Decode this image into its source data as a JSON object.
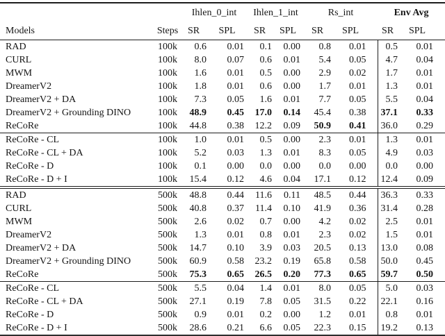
{
  "colors": {
    "background": "#ffffff",
    "text": "#141414",
    "rule": "#1c1c1c"
  },
  "table": {
    "col_groups": [
      {
        "label": "Ihlen_0_int",
        "bold": false
      },
      {
        "label": "Ihlen_1_int",
        "bold": false
      },
      {
        "label": "Rs_int",
        "bold": false
      },
      {
        "label": "Env Avg",
        "bold": true
      }
    ],
    "header": {
      "models": "Models",
      "steps": "Steps",
      "sr": "SR",
      "spl": "SPL"
    },
    "blocks": [
      {
        "rule_after": "single",
        "rows": [
          {
            "model": "RAD",
            "steps": "100k",
            "values": [
              "0.6",
              "0.01",
              "0.1",
              "0.00",
              "0.8",
              "0.01",
              "0.5",
              "0.01"
            ],
            "bold": []
          },
          {
            "model": "CURL",
            "steps": "100k",
            "values": [
              "8.0",
              "0.07",
              "0.6",
              "0.01",
              "5.4",
              "0.05",
              "4.7",
              "0.04"
            ],
            "bold": []
          },
          {
            "model": "MWM",
            "steps": "100k",
            "values": [
              "1.6",
              "0.01",
              "0.5",
              "0.00",
              "2.9",
              "0.02",
              "1.7",
              "0.01"
            ],
            "bold": []
          },
          {
            "model": "DreamerV2",
            "steps": "100k",
            "values": [
              "1.8",
              "0.01",
              "0.6",
              "0.00",
              "1.7",
              "0.01",
              "1.3",
              "0.01"
            ],
            "bold": []
          },
          {
            "model": "DreamerV2 + DA",
            "steps": "100k",
            "values": [
              "7.3",
              "0.05",
              "1.6",
              "0.01",
              "7.7",
              "0.05",
              "5.5",
              "0.04"
            ],
            "bold": []
          },
          {
            "model": "DreamerV2 + Grounding DINO",
            "steps": "100k",
            "values": [
              "48.9",
              "0.45",
              "17.0",
              "0.14",
              "45.4",
              "0.38",
              "37.1",
              "0.33"
            ],
            "bold": [
              0,
              1,
              2,
              3,
              6,
              7
            ]
          },
          {
            "model": "ReCoRe",
            "steps": "100k",
            "values": [
              "44.8",
              "0.38",
              "12.2",
              "0.09",
              "50.9",
              "0.41",
              "36.0",
              "0.29"
            ],
            "bold": [
              4,
              5
            ]
          }
        ]
      },
      {
        "rule_after": "double",
        "rows": [
          {
            "model": "ReCoRe - CL",
            "steps": "100k",
            "values": [
              "1.0",
              "0.01",
              "0.5",
              "0.00",
              "2.3",
              "0.01",
              "1.3",
              "0.01"
            ],
            "bold": []
          },
          {
            "model": "ReCoRe - CL + DA",
            "steps": "100k",
            "values": [
              "5.2",
              "0.03",
              "1.3",
              "0.01",
              "8.3",
              "0.05",
              "4.9",
              "0.03"
            ],
            "bold": []
          },
          {
            "model": "ReCoRe - D",
            "steps": "100k",
            "values": [
              "0.1",
              "0.00",
              "0.0",
              "0.00",
              "0.0",
              "0.00",
              "0.0",
              "0.00"
            ],
            "bold": []
          },
          {
            "model": "ReCoRe - D + I",
            "steps": "100k",
            "values": [
              "15.4",
              "0.12",
              "4.6",
              "0.04",
              "17.1",
              "0.12",
              "12.4",
              "0.09"
            ],
            "bold": []
          }
        ]
      },
      {
        "rule_after": "single",
        "rows": [
          {
            "model": "RAD",
            "steps": "500k",
            "values": [
              "48.8",
              "0.44",
              "11.6",
              "0.11",
              "48.5",
              "0.44",
              "36.3",
              "0.33"
            ],
            "bold": []
          },
          {
            "model": "CURL",
            "steps": "500k",
            "values": [
              "40.8",
              "0.37",
              "11.4",
              "0.10",
              "41.9",
              "0.36",
              "31.4",
              "0.28"
            ],
            "bold": []
          },
          {
            "model": "MWM",
            "steps": "500k",
            "values": [
              "2.6",
              "0.02",
              "0.7",
              "0.00",
              "4.2",
              "0.02",
              "2.5",
              "0.01"
            ],
            "bold": []
          },
          {
            "model": "DreamerV2",
            "steps": "500k",
            "values": [
              "1.3",
              "0.01",
              "0.8",
              "0.01",
              "2.3",
              "0.02",
              "1.5",
              "0.01"
            ],
            "bold": []
          },
          {
            "model": "DreamerV2 + DA",
            "steps": "500k",
            "values": [
              "14.7",
              "0.10",
              "3.9",
              "0.03",
              "20.5",
              "0.13",
              "13.0",
              "0.08"
            ],
            "bold": []
          },
          {
            "model": "DreamerV2 + Grounding DINO",
            "steps": "500k",
            "values": [
              "60.9",
              "0.58",
              "23.2",
              "0.19",
              "65.8",
              "0.58",
              "50.0",
              "0.45"
            ],
            "bold": []
          },
          {
            "model": "ReCoRe",
            "steps": "500k",
            "values": [
              "75.3",
              "0.65",
              "26.5",
              "0.20",
              "77.3",
              "0.65",
              "59.7",
              "0.50"
            ],
            "bold": [
              0,
              1,
              2,
              3,
              4,
              5,
              6,
              7
            ]
          }
        ]
      },
      {
        "rule_after": "none",
        "rows": [
          {
            "model": "ReCoRe - CL",
            "steps": "500k",
            "values": [
              "5.5",
              "0.04",
              "1.4",
              "0.01",
              "8.0",
              "0.05",
              "5.0",
              "0.03"
            ],
            "bold": []
          },
          {
            "model": "ReCoRe - CL + DA",
            "steps": "500k",
            "values": [
              "27.1",
              "0.19",
              "7.8",
              "0.05",
              "31.5",
              "0.22",
              "22.1",
              "0.16"
            ],
            "bold": []
          },
          {
            "model": "ReCoRe - D",
            "steps": "500k",
            "values": [
              "0.9",
              "0.01",
              "0.2",
              "0.00",
              "1.2",
              "0.01",
              "0.8",
              "0.01"
            ],
            "bold": []
          },
          {
            "model": "ReCoRe - D + I",
            "steps": "500k",
            "values": [
              "28.6",
              "0.21",
              "6.6",
              "0.05",
              "22.3",
              "0.15",
              "19.2",
              "0.13"
            ],
            "bold": []
          }
        ]
      }
    ]
  }
}
